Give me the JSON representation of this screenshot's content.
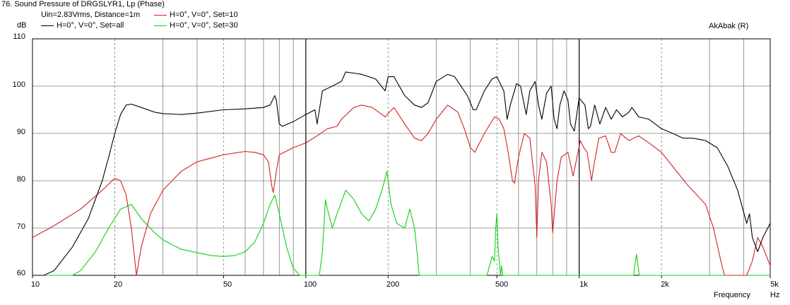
{
  "header": {
    "title": "76. Sound Pressure of DRGSLYR1, Lp (Phase)",
    "conditions": "Uin=2.83Vrms, Distance=1m",
    "brand": "AkAbak (R)"
  },
  "colors": {
    "black": "#000000",
    "red": "#d42020",
    "green": "#10d010",
    "grid": "#7f7f7f"
  },
  "chart_data": {
    "type": "line",
    "title": "76. Sound Pressure of DRGSLYR1, Lp (Phase)",
    "xlabel": "Frequency",
    "xunit": "Hz",
    "ylabel": "dB",
    "xscale": "log",
    "xlim": [
      10,
      5000
    ],
    "ylim": [
      60,
      110
    ],
    "grid": true,
    "legend_position": "top-left",
    "y_ticks": [
      {
        "value": 60,
        "label": "60"
      },
      {
        "value": 70,
        "label": "70"
      },
      {
        "value": 80,
        "label": "80"
      },
      {
        "value": 90,
        "label": "90"
      },
      {
        "value": 100,
        "label": "100"
      },
      {
        "value": 110,
        "label": "110"
      }
    ],
    "x_ticks": [
      {
        "value": 10,
        "label": "10"
      },
      {
        "value": 20,
        "label": "20"
      },
      {
        "value": 50,
        "label": "50"
      },
      {
        "value": 100,
        "label": "100"
      },
      {
        "value": 200,
        "label": "200"
      },
      {
        "value": 500,
        "label": "500"
      },
      {
        "value": 1000,
        "label": "1k"
      },
      {
        "value": 2000,
        "label": "2k"
      },
      {
        "value": 5000,
        "label": "5k"
      }
    ],
    "series": [
      {
        "name": "H=0°, V=0°, Set=all",
        "color": "#000000",
        "points": [
          [
            10,
            60
          ],
          [
            11,
            60
          ],
          [
            12,
            61
          ],
          [
            14,
            66
          ],
          [
            16,
            72
          ],
          [
            18,
            80
          ],
          [
            19,
            85
          ],
          [
            20,
            90
          ],
          [
            21,
            94
          ],
          [
            22,
            96
          ],
          [
            23,
            96.2
          ],
          [
            25,
            95.5
          ],
          [
            28,
            94.5
          ],
          [
            30,
            94.2
          ],
          [
            35,
            94
          ],
          [
            40,
            94.3
          ],
          [
            50,
            95
          ],
          [
            60,
            95.2
          ],
          [
            70,
            95.5
          ],
          [
            74,
            96
          ],
          [
            77,
            98
          ],
          [
            78,
            97
          ],
          [
            80,
            92
          ],
          [
            82,
            91.5
          ],
          [
            90,
            92.5
          ],
          [
            100,
            94
          ],
          [
            108,
            95
          ],
          [
            110,
            92
          ],
          [
            115,
            99
          ],
          [
            125,
            100
          ],
          [
            135,
            101
          ],
          [
            140,
            103
          ],
          [
            160,
            102.5
          ],
          [
            180,
            101.5
          ],
          [
            195,
            99
          ],
          [
            200,
            102
          ],
          [
            210,
            102
          ],
          [
            230,
            98
          ],
          [
            250,
            96
          ],
          [
            265,
            95.5
          ],
          [
            280,
            96.5
          ],
          [
            300,
            101
          ],
          [
            330,
            102.5
          ],
          [
            350,
            102
          ],
          [
            390,
            98
          ],
          [
            410,
            95
          ],
          [
            420,
            95
          ],
          [
            450,
            99
          ],
          [
            480,
            101.5
          ],
          [
            500,
            102
          ],
          [
            530,
            99
          ],
          [
            545,
            93
          ],
          [
            560,
            96
          ],
          [
            590,
            100.5
          ],
          [
            610,
            100
          ],
          [
            640,
            94
          ],
          [
            660,
            99
          ],
          [
            690,
            101
          ],
          [
            710,
            96
          ],
          [
            730,
            93
          ],
          [
            760,
            98.5
          ],
          [
            790,
            100
          ],
          [
            810,
            93
          ],
          [
            830,
            91
          ],
          [
            850,
            96
          ],
          [
            880,
            99
          ],
          [
            910,
            97
          ],
          [
            930,
            92
          ],
          [
            960,
            90.5
          ],
          [
            1000,
            97.5
          ],
          [
            1050,
            96
          ],
          [
            1080,
            91
          ],
          [
            1100,
            91.5
          ],
          [
            1140,
            96
          ],
          [
            1190,
            92
          ],
          [
            1250,
            95.5
          ],
          [
            1310,
            93
          ],
          [
            1370,
            95
          ],
          [
            1440,
            93.5
          ],
          [
            1520,
            94.5
          ],
          [
            1560,
            95.5
          ],
          [
            1650,
            93.5
          ],
          [
            1800,
            93
          ],
          [
            2000,
            91
          ],
          [
            2200,
            90
          ],
          [
            2400,
            89
          ],
          [
            2600,
            89
          ],
          [
            2900,
            88.5
          ],
          [
            3200,
            87
          ],
          [
            3500,
            83
          ],
          [
            3800,
            78
          ],
          [
            4100,
            71
          ],
          [
            4200,
            73
          ],
          [
            4300,
            68
          ],
          [
            4500,
            65
          ],
          [
            4700,
            68
          ],
          [
            5000,
            71
          ]
        ]
      },
      {
        "name": "H=0°, V=0°, Set=10",
        "color": "#d42020",
        "points": [
          [
            10,
            68
          ],
          [
            12,
            70.5
          ],
          [
            15,
            74
          ],
          [
            18,
            78
          ],
          [
            20,
            80.5
          ],
          [
            21,
            80
          ],
          [
            22,
            77
          ],
          [
            23,
            70
          ],
          [
            24,
            60
          ],
          [
            25,
            66
          ],
          [
            27,
            73
          ],
          [
            30,
            78
          ],
          [
            35,
            82
          ],
          [
            40,
            84
          ],
          [
            50,
            85.5
          ],
          [
            60,
            86.2
          ],
          [
            65,
            86
          ],
          [
            70,
            85.5
          ],
          [
            73,
            84
          ],
          [
            75,
            79
          ],
          [
            76,
            77.5
          ],
          [
            78,
            82
          ],
          [
            80,
            85.5
          ],
          [
            90,
            87
          ],
          [
            100,
            88
          ],
          [
            110,
            89.5
          ],
          [
            120,
            91
          ],
          [
            130,
            91.5
          ],
          [
            135,
            93
          ],
          [
            150,
            95.5
          ],
          [
            160,
            96
          ],
          [
            175,
            95.5
          ],
          [
            190,
            94
          ],
          [
            195,
            93.5
          ],
          [
            210,
            95.5
          ],
          [
            230,
            92
          ],
          [
            250,
            89
          ],
          [
            265,
            88.5
          ],
          [
            280,
            90
          ],
          [
            300,
            93
          ],
          [
            320,
            95
          ],
          [
            330,
            96
          ],
          [
            360,
            94.5
          ],
          [
            380,
            91
          ],
          [
            400,
            87
          ],
          [
            415,
            86
          ],
          [
            450,
            90
          ],
          [
            490,
            93.5
          ],
          [
            510,
            93
          ],
          [
            530,
            91
          ],
          [
            550,
            86
          ],
          [
            570,
            80
          ],
          [
            580,
            79.5
          ],
          [
            600,
            85
          ],
          [
            630,
            90
          ],
          [
            660,
            89
          ],
          [
            690,
            79
          ],
          [
            700,
            68
          ],
          [
            710,
            80
          ],
          [
            730,
            86
          ],
          [
            760,
            84
          ],
          [
            790,
            75
          ],
          [
            800,
            69
          ],
          [
            830,
            80
          ],
          [
            860,
            85
          ],
          [
            910,
            86
          ],
          [
            950,
            81
          ],
          [
            970,
            83.5
          ],
          [
            1010,
            88.5
          ],
          [
            1040,
            87
          ],
          [
            1070,
            86
          ],
          [
            1090,
            83
          ],
          [
            1110,
            80
          ],
          [
            1130,
            83
          ],
          [
            1180,
            89
          ],
          [
            1250,
            89.5
          ],
          [
            1310,
            86
          ],
          [
            1350,
            86
          ],
          [
            1420,
            90
          ],
          [
            1480,
            89
          ],
          [
            1530,
            88.5
          ],
          [
            1580,
            89
          ],
          [
            1650,
            89.5
          ],
          [
            1800,
            88
          ],
          [
            2000,
            86
          ],
          [
            2200,
            83
          ],
          [
            2500,
            79
          ],
          [
            2900,
            75
          ],
          [
            3100,
            70
          ],
          [
            3300,
            63
          ],
          [
            3400,
            60
          ],
          [
            4100,
            60
          ],
          [
            4300,
            63
          ],
          [
            4500,
            68
          ],
          [
            4700,
            66
          ],
          [
            5000,
            62
          ]
        ]
      },
      {
        "name": "H=0°, V=0°, Set=30",
        "color": "#10d010",
        "points": [
          [
            10,
            60
          ],
          [
            13,
            60
          ],
          [
            14,
            60
          ],
          [
            15,
            61
          ],
          [
            17,
            65
          ],
          [
            19,
            70
          ],
          [
            21,
            74
          ],
          [
            23,
            75
          ],
          [
            25,
            72
          ],
          [
            28,
            69
          ],
          [
            30,
            67.5
          ],
          [
            35,
            65.5
          ],
          [
            40,
            64.8
          ],
          [
            45,
            64.2
          ],
          [
            50,
            64
          ],
          [
            55,
            64.2
          ],
          [
            60,
            65
          ],
          [
            65,
            67
          ],
          [
            70,
            71
          ],
          [
            74,
            75
          ],
          [
            77,
            77
          ],
          [
            80,
            73
          ],
          [
            85,
            66
          ],
          [
            90,
            61.5
          ],
          [
            95,
            60
          ],
          [
            112,
            60
          ],
          [
            115,
            65
          ],
          [
            118,
            76
          ],
          [
            120,
            74
          ],
          [
            125,
            70
          ],
          [
            130,
            73
          ],
          [
            140,
            78
          ],
          [
            150,
            76
          ],
          [
            160,
            73
          ],
          [
            170,
            71.5
          ],
          [
            180,
            74
          ],
          [
            190,
            78
          ],
          [
            198,
            82
          ],
          [
            205,
            75
          ],
          [
            215,
            71
          ],
          [
            230,
            70
          ],
          [
            240,
            74
          ],
          [
            250,
            70
          ],
          [
            255,
            65
          ],
          [
            260,
            60
          ],
          [
            460,
            60
          ],
          [
            480,
            64
          ],
          [
            490,
            63
          ],
          [
            495,
            70
          ],
          [
            500,
            73
          ],
          [
            505,
            66
          ],
          [
            515,
            60
          ],
          [
            520,
            62
          ],
          [
            525,
            60
          ],
          [
            1580,
            60
          ],
          [
            1620,
            64.5
          ],
          [
            1660,
            60
          ],
          [
            5000,
            60
          ]
        ]
      }
    ]
  }
}
